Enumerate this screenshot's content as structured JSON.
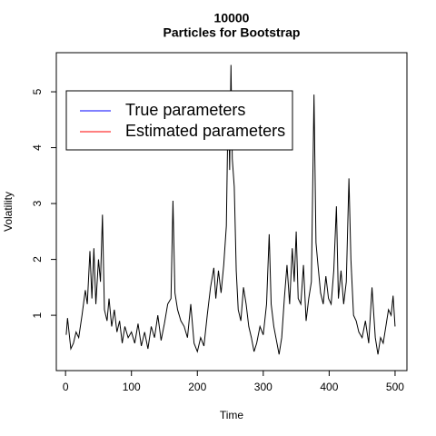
{
  "chart_data": {
    "type": "line",
    "title": "10000",
    "subtitle": "Particles for Bootstrap",
    "x_label": "Time",
    "y_label": "Volatility",
    "x": [
      1,
      3,
      8,
      12,
      16,
      20,
      25,
      30,
      33,
      37,
      40,
      43,
      46,
      50,
      53,
      56,
      59,
      63,
      66,
      70,
      74,
      78,
      82,
      86,
      90,
      95,
      100,
      105,
      110,
      115,
      120,
      125,
      130,
      135,
      140,
      145,
      150,
      155,
      160,
      163,
      166,
      170,
      175,
      180,
      185,
      190,
      195,
      200,
      205,
      210,
      215,
      220,
      225,
      228,
      232,
      236,
      240,
      244,
      247,
      249,
      251,
      253,
      256,
      259,
      262,
      266,
      270,
      274,
      278,
      282,
      286,
      290,
      295,
      300,
      305,
      309,
      312,
      316,
      320,
      324,
      328,
      332,
      336,
      340,
      344,
      347,
      350,
      353,
      357,
      361,
      365,
      369,
      373,
      377,
      380,
      383,
      387,
      391,
      395,
      399,
      403,
      407,
      411,
      414,
      418,
      422,
      426,
      430,
      433,
      437,
      441,
      445,
      450,
      455,
      460,
      465,
      470,
      474,
      478,
      482,
      486,
      490,
      494,
      497,
      500
    ],
    "series": [
      {
        "color": "#000000",
        "values": [
          0.65,
          0.95,
          0.4,
          0.5,
          0.7,
          0.6,
          1.0,
          1.45,
          1.2,
          2.15,
          1.3,
          2.2,
          1.2,
          2.0,
          1.6,
          2.8,
          1.1,
          0.9,
          1.3,
          0.8,
          1.1,
          0.7,
          0.9,
          0.5,
          0.8,
          0.6,
          0.7,
          0.5,
          0.85,
          0.45,
          0.7,
          0.4,
          0.8,
          0.6,
          1.0,
          0.55,
          0.85,
          1.2,
          1.3,
          3.05,
          1.4,
          1.1,
          0.9,
          0.8,
          0.6,
          1.2,
          0.5,
          0.35,
          0.6,
          0.45,
          1.0,
          1.5,
          1.85,
          1.3,
          1.8,
          1.4,
          1.9,
          2.6,
          5.0,
          3.6,
          5.48,
          3.8,
          3.3,
          1.8,
          1.1,
          0.9,
          1.5,
          1.2,
          0.8,
          0.6,
          0.35,
          0.5,
          0.8,
          0.65,
          1.2,
          2.45,
          1.2,
          0.8,
          0.55,
          0.3,
          0.6,
          1.3,
          1.9,
          1.2,
          2.2,
          1.6,
          2.5,
          1.3,
          1.2,
          1.9,
          0.9,
          1.3,
          1.6,
          4.95,
          2.3,
          1.9,
          1.4,
          1.2,
          1.7,
          1.3,
          1.2,
          1.8,
          2.95,
          1.3,
          1.8,
          1.2,
          1.6,
          3.45,
          2.0,
          1.0,
          0.9,
          0.7,
          0.6,
          0.9,
          0.5,
          1.5,
          0.6,
          0.3,
          0.6,
          0.5,
          0.8,
          1.1,
          1.0,
          1.35,
          0.8
        ]
      }
    ],
    "legend": [
      {
        "label": "True parameters",
        "color": "#0000ff"
      },
      {
        "label": "Estimated parameters",
        "color": "#ff0000"
      }
    ],
    "xlim": [
      -14,
      518
    ],
    "ylim": [
      0.01,
      5.7
    ],
    "xticks": [
      0,
      100,
      200,
      300,
      400,
      500
    ],
    "yticks": [
      1,
      2,
      3,
      4,
      5
    ]
  }
}
